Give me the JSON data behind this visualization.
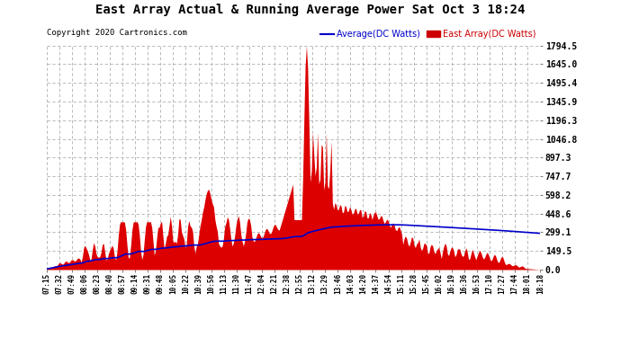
{
  "title": "East Array Actual & Running Average Power Sat Oct 3 18:24",
  "copyright": "Copyright 2020 Cartronics.com",
  "legend_avg": "Average(DC Watts)",
  "legend_east": "East Array(DC Watts)",
  "ylabel_right_ticks": [
    0.0,
    149.5,
    299.1,
    448.6,
    598.2,
    747.7,
    897.3,
    1046.8,
    1196.3,
    1345.9,
    1495.4,
    1645.0,
    1794.5
  ],
  "ymax": 1794.5,
  "ymin": 0.0,
  "bg_color": "#ffffff",
  "grid_color": "#b0b0b0",
  "fill_color": "#dd0000",
  "avg_line_color": "#0000cc",
  "title_color": "#000000",
  "copyright_color": "#000000",
  "legend_avg_color": "#0000cc",
  "legend_east_color": "#cc0000",
  "tick_label_color": "#000000",
  "x_labels": [
    "07:15",
    "07:32",
    "07:49",
    "08:06",
    "08:23",
    "08:40",
    "08:57",
    "09:14",
    "09:31",
    "09:48",
    "10:05",
    "10:22",
    "10:39",
    "10:56",
    "11:13",
    "11:30",
    "11:47",
    "12:04",
    "12:21",
    "12:38",
    "12:55",
    "13:12",
    "13:29",
    "13:46",
    "14:03",
    "14:20",
    "14:37",
    "14:54",
    "15:11",
    "15:28",
    "15:45",
    "16:02",
    "16:19",
    "16:36",
    "16:53",
    "17:10",
    "17:27",
    "17:44",
    "18:01",
    "18:18"
  ]
}
